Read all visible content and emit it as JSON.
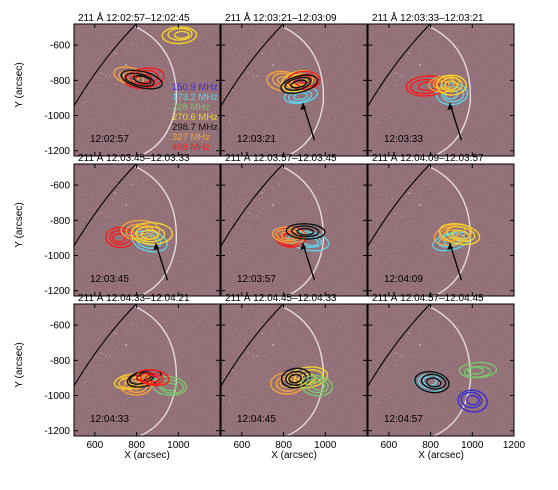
{
  "figure": {
    "xlabel": "X (arcsec)",
    "ylabel": "Y (arcsec)",
    "x_ticks": [
      "600",
      "800",
      "1000",
      "1200"
    ],
    "y_ticks": [
      "-600",
      "-800",
      "-1000",
      "-1200"
    ],
    "xlim": [
      500,
      1200
    ],
    "ylim": [
      -1230,
      -480
    ],
    "background_color": "#8e6a71",
    "arrow_color": "#000000"
  },
  "legend": {
    "entries": [
      {
        "label": "150.9 MHz",
        "color": "#3a2cd6"
      },
      {
        "label": "173.2 MHz",
        "color": "#5fd0e6"
      },
      {
        "label": "228 MHz",
        "color": "#79c76a"
      },
      {
        "label": "270.6 MHz",
        "color": "#f2d32a"
      },
      {
        "label": "298.7 MHz",
        "color": "#111111"
      },
      {
        "label": "327 MHz",
        "color": "#f5a23a"
      },
      {
        "label": "408 MHz",
        "color": "#ff1a1a"
      }
    ]
  },
  "panels": [
    {
      "title": "211 Å 12:02:57–12:02:45",
      "time": "12:02:57",
      "arrow": false,
      "sources": [
        {
          "freq": "327 MHz",
          "color": "#f5a23a",
          "x": 770,
          "y": -780
        },
        {
          "freq": "408 MHz",
          "color": "#ff1a1a",
          "x": 840,
          "y": -790
        },
        {
          "freq": "298.7 MHz",
          "color": "#111111",
          "x": 820,
          "y": -795
        },
        {
          "freq": "270.6 MHz",
          "color": "#f2d32a",
          "x": 1010,
          "y": -540
        }
      ]
    },
    {
      "title": "211 Å 12:03:21–12:03:09",
      "time": "12:03:21",
      "arrow": true,
      "sources": [
        {
          "freq": "173.2 MHz",
          "color": "#5fd0e6",
          "x": 880,
          "y": -890
        },
        {
          "freq": "327 MHz",
          "color": "#f5a23a",
          "x": 800,
          "y": -800
        },
        {
          "freq": "270.6 MHz",
          "color": "#f2d32a",
          "x": 880,
          "y": -810
        },
        {
          "freq": "408 MHz",
          "color": "#ff1a1a",
          "x": 900,
          "y": -800
        },
        {
          "freq": "298.7 MHz",
          "color": "#111111",
          "x": 870,
          "y": -820
        }
      ]
    },
    {
      "title": "211 Å 12:03:33–12:03:21",
      "time": "12:03:33",
      "arrow": true,
      "sources": [
        {
          "freq": "173.2 MHz",
          "color": "#5fd0e6",
          "x": 900,
          "y": -880
        },
        {
          "freq": "408 MHz",
          "color": "#ff1a1a",
          "x": 780,
          "y": -830
        },
        {
          "freq": "327 MHz",
          "color": "#f5a23a",
          "x": 860,
          "y": -820
        },
        {
          "freq": "270.6 MHz",
          "color": "#f2d32a",
          "x": 900,
          "y": -830
        }
      ]
    },
    {
      "title": "211 Å 12:03:45–12:03:33",
      "time": "12:03:45",
      "arrow": true,
      "sources": [
        {
          "freq": "408 MHz",
          "color": "#ff1a1a",
          "x": 720,
          "y": -900
        },
        {
          "freq": "173.2 MHz",
          "color": "#5fd0e6",
          "x": 860,
          "y": -920
        },
        {
          "freq": "327 MHz",
          "color": "#f5a23a",
          "x": 820,
          "y": -860
        },
        {
          "freq": "270.6 MHz",
          "color": "#f2d32a",
          "x": 870,
          "y": -880
        }
      ]
    },
    {
      "title": "211 Å 12:03:57–12:03:45",
      "time": "12:03:57",
      "arrow": true,
      "sources": [
        {
          "freq": "173.2 MHz",
          "color": "#5fd0e6",
          "x": 920,
          "y": -920
        },
        {
          "freq": "408 MHz",
          "color": "#ff1a1a",
          "x": 830,
          "y": -900
        },
        {
          "freq": "327 MHz",
          "color": "#f5a23a",
          "x": 820,
          "y": -880
        },
        {
          "freq": "298.7 MHz",
          "color": "#111111",
          "x": 900,
          "y": -860
        }
      ]
    },
    {
      "title": "211 Å 12:04:09–12:03:57",
      "time": "12:04:09",
      "arrow": true,
      "sources": [
        {
          "freq": "173.2 MHz",
          "color": "#5fd0e6",
          "x": 900,
          "y": -920
        },
        {
          "freq": "327 MHz",
          "color": "#f5a23a",
          "x": 900,
          "y": -880
        },
        {
          "freq": "270.6 MHz",
          "color": "#f2d32a",
          "x": 940,
          "y": -880
        }
      ]
    },
    {
      "title": "211 Å 12:04:33–12:04:21",
      "time": "12:04:33",
      "arrow": false,
      "sources": [
        {
          "freq": "270.6 MHz",
          "color": "#f2d32a",
          "x": 780,
          "y": -920
        },
        {
          "freq": "327 MHz",
          "color": "#f5a23a",
          "x": 800,
          "y": -940
        },
        {
          "freq": "298.7 MHz",
          "color": "#111111",
          "x": 830,
          "y": -900
        },
        {
          "freq": "228 MHz",
          "color": "#79c76a",
          "x": 960,
          "y": -950
        },
        {
          "freq": "408 MHz",
          "color": "#ff1a1a",
          "x": 880,
          "y": -900
        }
      ]
    },
    {
      "title": "211 Å 12:04:45–12:04:33",
      "time": "12:04:45",
      "arrow": false,
      "sources": [
        {
          "freq": "327 MHz",
          "color": "#f5a23a",
          "x": 820,
          "y": -930
        },
        {
          "freq": "270.6 MHz",
          "color": "#f2d32a",
          "x": 920,
          "y": -900
        },
        {
          "freq": "298.7 MHz",
          "color": "#111111",
          "x": 860,
          "y": -900
        },
        {
          "freq": "228 MHz",
          "color": "#79c76a",
          "x": 960,
          "y": -940
        }
      ]
    },
    {
      "title": "211 Å 12:04:57–12:04:45",
      "time": "12:04:57",
      "arrow": false,
      "sources": [
        {
          "freq": "173.2 MHz",
          "color": "#5fd0e6",
          "x": 800,
          "y": -920
        },
        {
          "freq": "298.7 MHz",
          "color": "#111111",
          "x": 810,
          "y": -920
        },
        {
          "freq": "228 MHz",
          "color": "#79c76a",
          "x": 1020,
          "y": -860
        },
        {
          "freq": "150.9 MHz",
          "color": "#3a2cd6",
          "x": 1000,
          "y": -1030
        }
      ]
    }
  ]
}
